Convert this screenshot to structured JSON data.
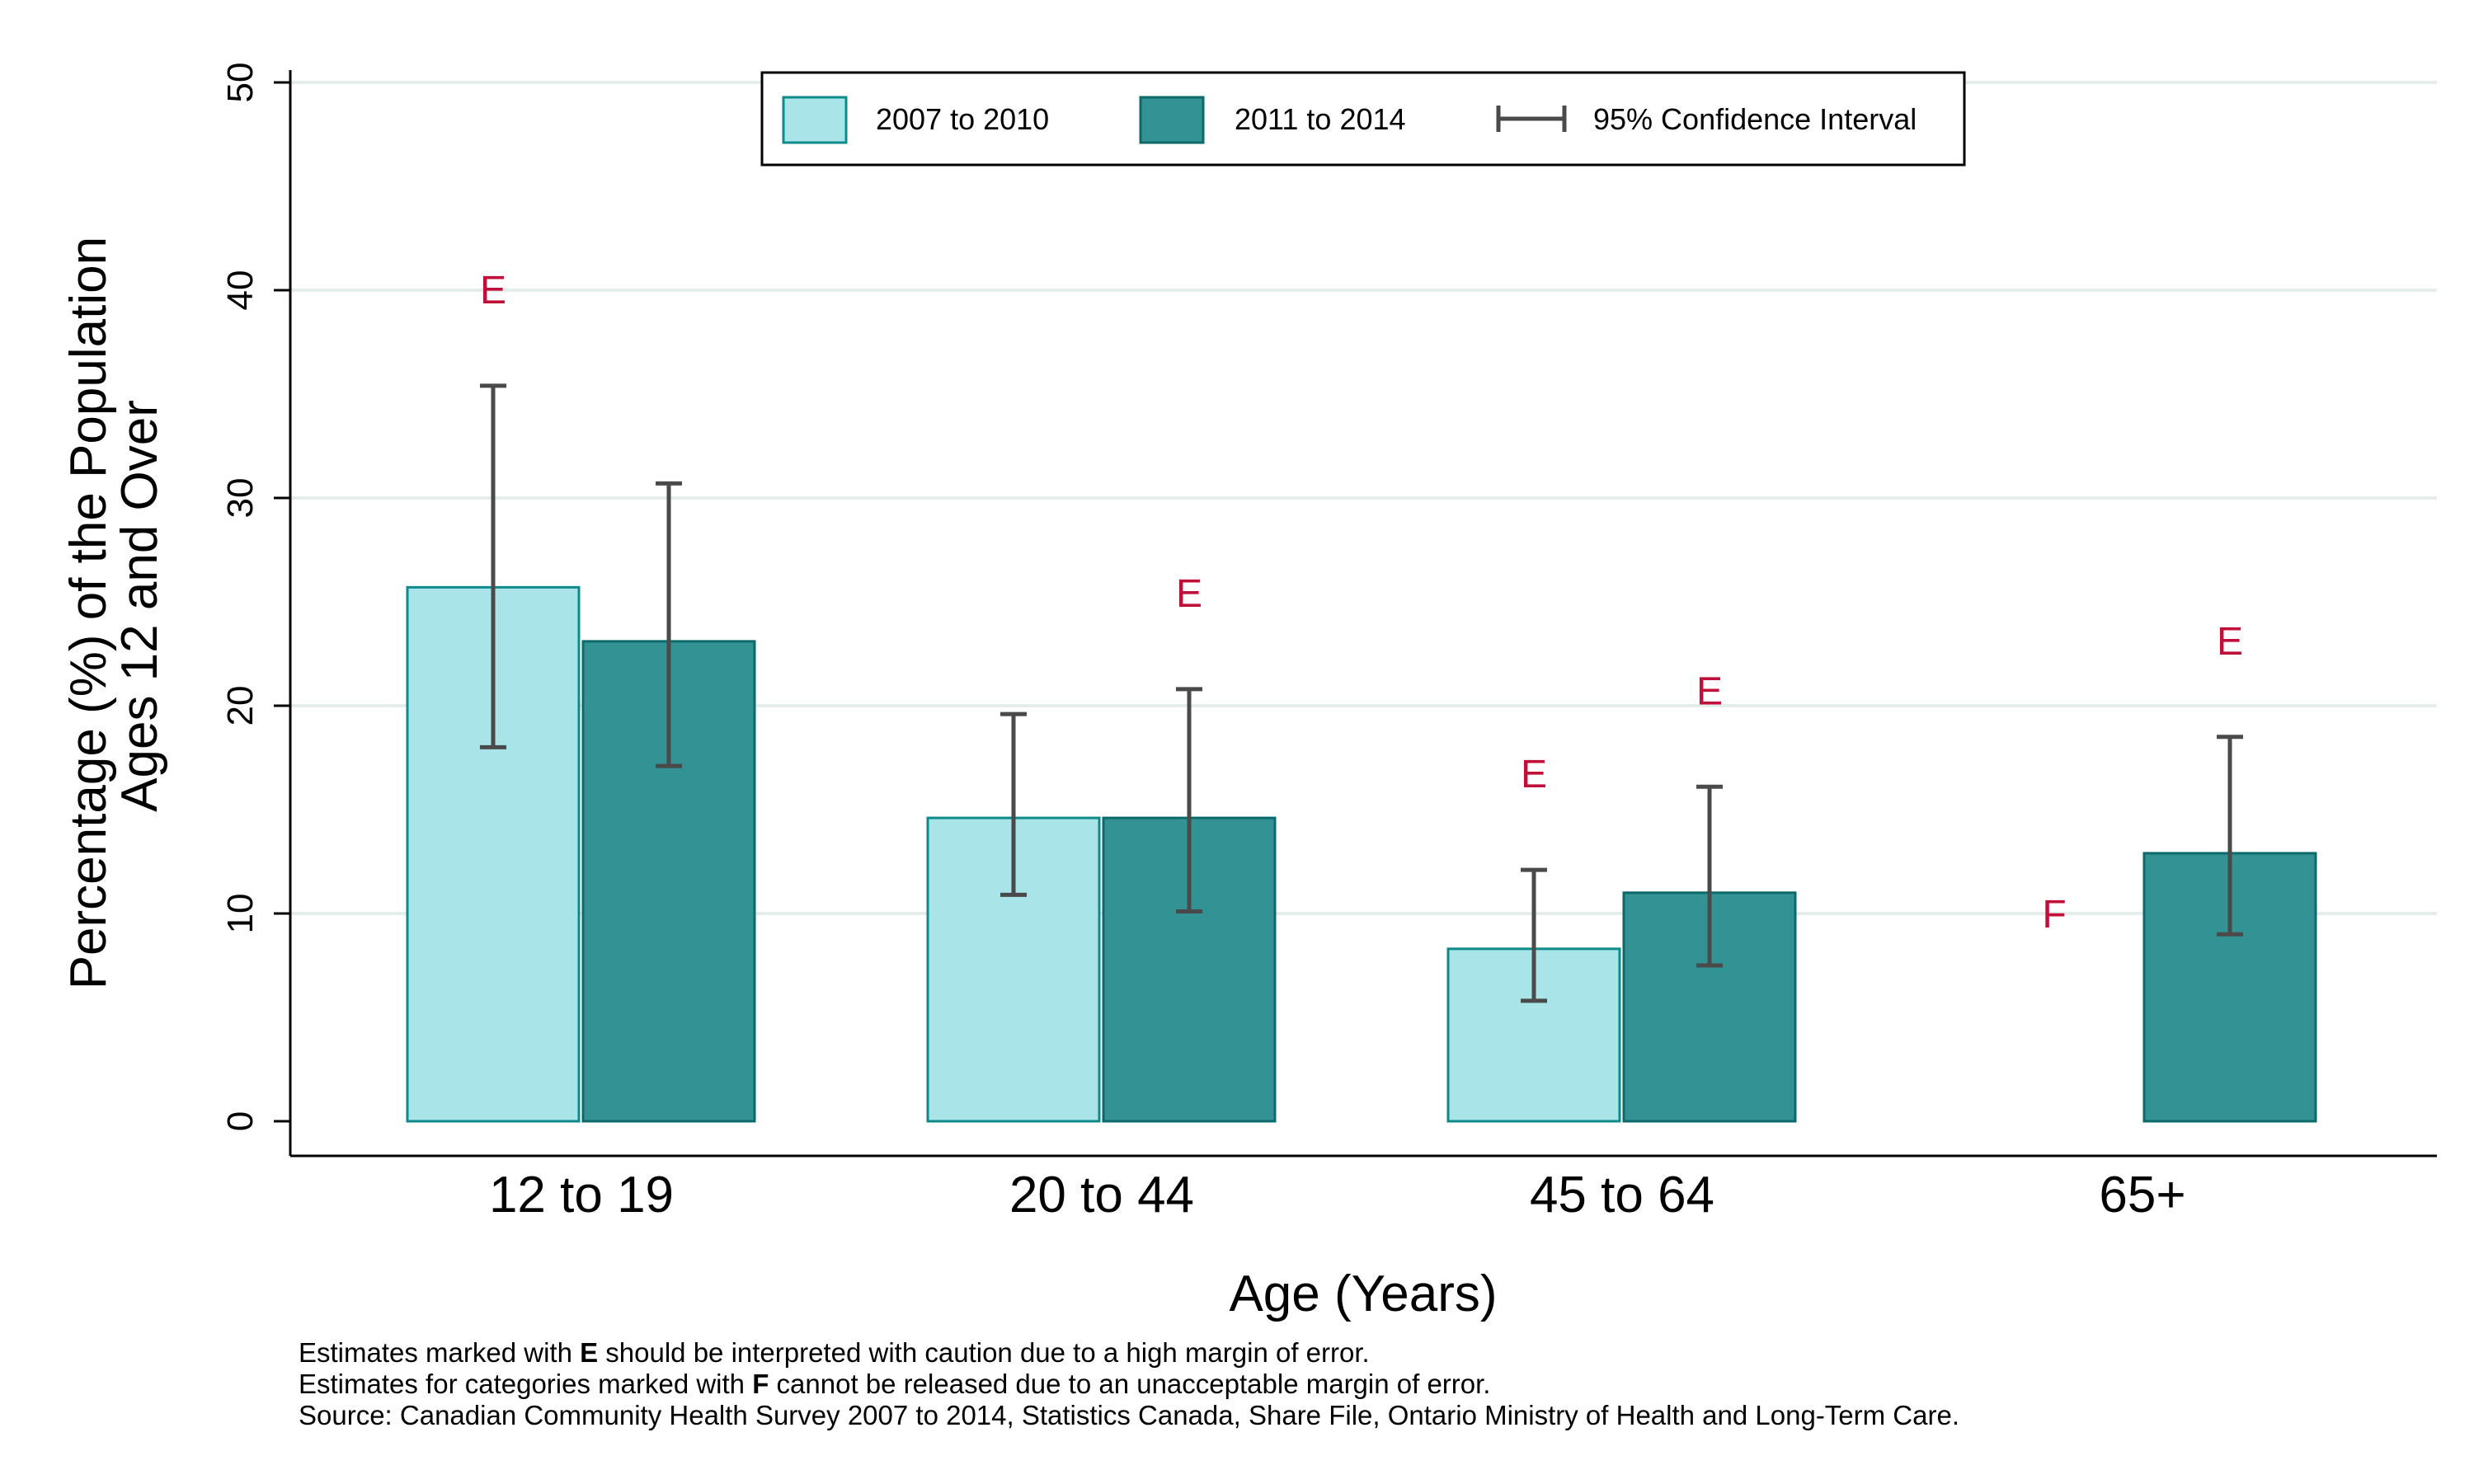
{
  "chart_data": {
    "type": "bar",
    "title": "",
    "xlabel": "Age (Years)",
    "ylabel": [
      "Percentage (%) of the Population",
      "Ages 12 and Over"
    ],
    "ylim": [
      0,
      50
    ],
    "yticks": [
      0,
      10,
      20,
      30,
      40,
      50
    ],
    "grid": true,
    "legend_position": "top",
    "categories": [
      "12 to 19",
      "20 to 44",
      "45 to 64",
      "65+"
    ],
    "series": [
      {
        "name": "2007 to 2010",
        "color": "#a8e4e8",
        "stroke": "#0f8a8a",
        "values": [
          25.7,
          14.6,
          8.3,
          null
        ],
        "ci_low": [
          18.0,
          10.9,
          5.8,
          null
        ],
        "ci_high": [
          35.4,
          19.6,
          12.1,
          null
        ],
        "flags": [
          "E",
          "",
          "E",
          "F"
        ]
      },
      {
        "name": "2011 to 2014",
        "color": "#329294",
        "stroke": "#0d6a6b",
        "values": [
          23.1,
          14.6,
          11.0,
          12.9
        ],
        "ci_low": [
          17.1,
          10.1,
          7.5,
          9.0
        ],
        "ci_high": [
          30.7,
          20.8,
          16.1,
          18.5
        ],
        "flags": [
          "",
          "E",
          "E",
          "E"
        ]
      }
    ],
    "ci_label": "95% Confidence Interval",
    "ci_color": "#4a4a4a",
    "flag_color": "#c0103a",
    "grid_color": "#e4ecec"
  },
  "notes": {
    "line1": {
      "pre": "Estimates marked with ",
      "flag": "E",
      "post": " should be interpreted with caution due to a high margin of error."
    },
    "line2": {
      "pre": "Estimates for categories marked with ",
      "flag": "F",
      "post": " cannot be released due to an unacceptable margin of error."
    },
    "line3": "Source: Canadian Community Health Survey 2007 to 2014, Statistics Canada, Share File, Ontario Ministry of Health and Long-Term Care."
  }
}
